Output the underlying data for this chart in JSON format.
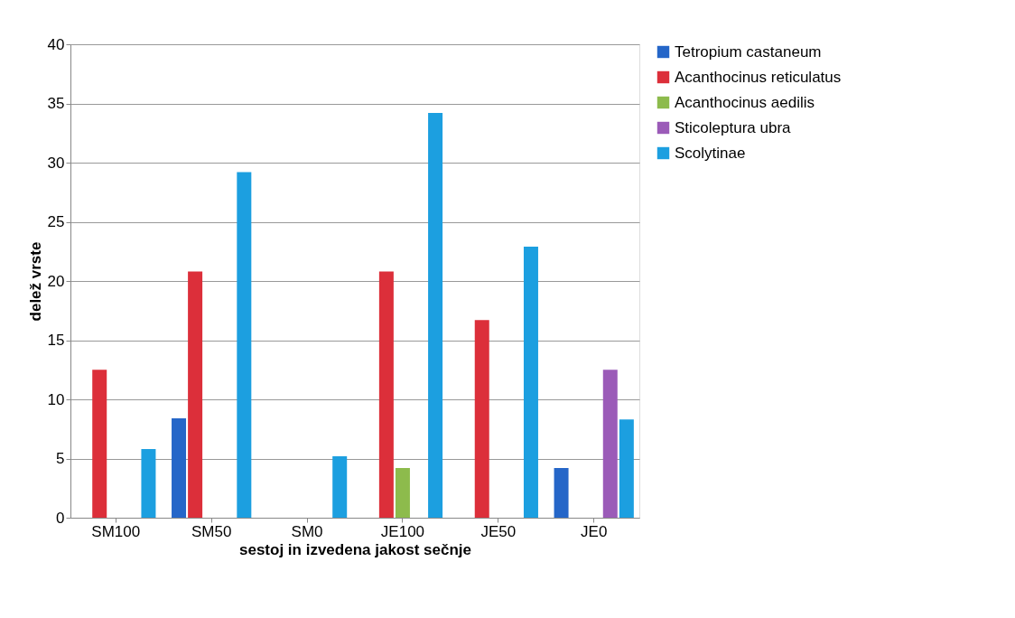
{
  "chart_data": {
    "type": "bar",
    "xlabel": "sestoj in izvedena jakost sečnje",
    "ylabel": "delež vrste",
    "categories": [
      "SM100",
      "SM50",
      "SM0",
      "JE100",
      "JE50",
      "JE0"
    ],
    "series": [
      {
        "name": "Tetropium castaneum",
        "color": "#2566c8",
        "values": [
          0,
          8.4,
          0,
          0,
          0,
          4.2
        ]
      },
      {
        "name": "Acanthocinus reticulatus",
        "color": "#dc2f3a",
        "values": [
          12.5,
          20.8,
          0,
          20.8,
          16.7,
          0
        ]
      },
      {
        "name": "Acanthocinus aedilis",
        "color": "#8dbb4c",
        "values": [
          0,
          0,
          0,
          4.2,
          0,
          0
        ]
      },
      {
        "name": "Sticoleptura ubra",
        "color": "#9b5bb8",
        "values": [
          0,
          0,
          0,
          0,
          0,
          12.5
        ]
      },
      {
        "name": "Scolytinae",
        "color": "#1c9fe0",
        "values": [
          5.8,
          29.2,
          5.2,
          34.2,
          22.9,
          8.3
        ]
      }
    ],
    "ylim": [
      0,
      40
    ],
    "yticks": [
      0,
      5,
      10,
      15,
      20,
      25,
      30,
      35,
      40
    ],
    "grid": "y",
    "legend": "right"
  }
}
